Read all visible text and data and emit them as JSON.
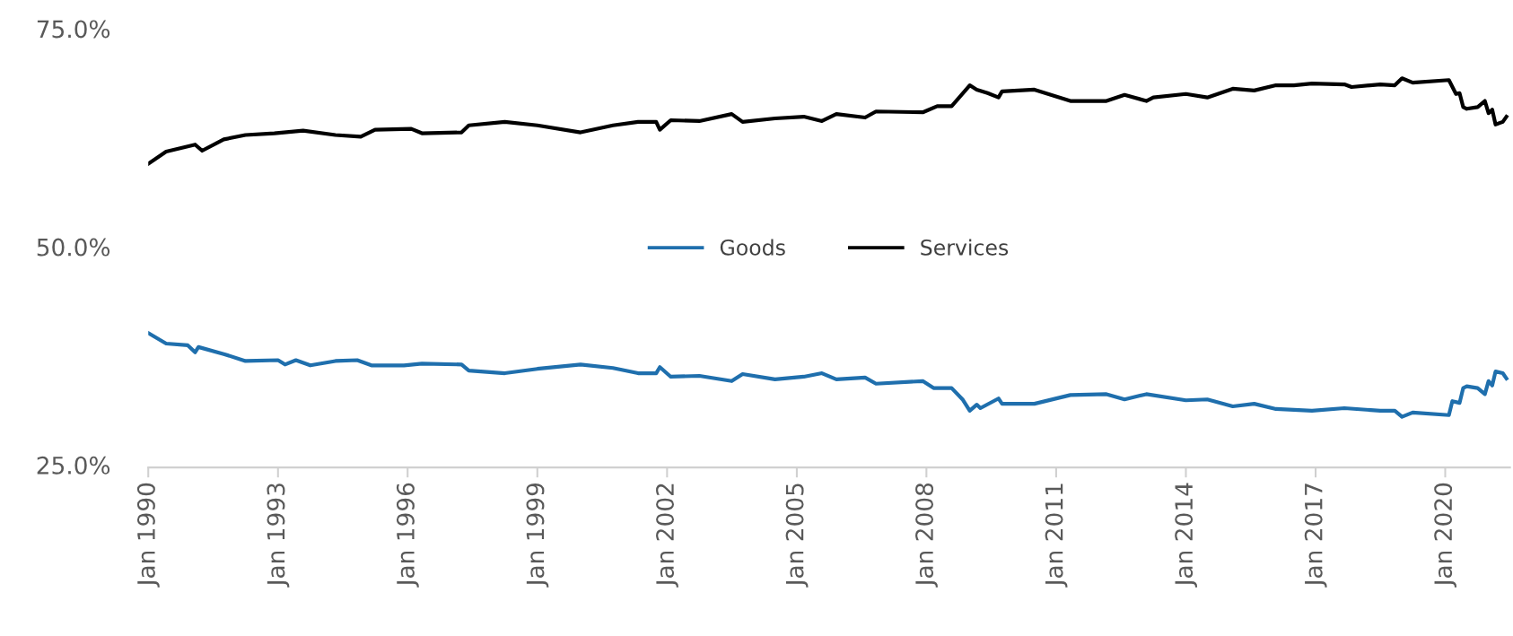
{
  "chart_data": {
    "type": "line",
    "x": [
      "1990-01",
      "1990-06",
      "1990-12",
      "1991-02",
      "1991-03",
      "1991-10",
      "1992-04",
      "1993-01",
      "1993-03",
      "1993-06",
      "1993-10",
      "1994-05",
      "1994-11",
      "1995-03",
      "1995-12",
      "1996-05",
      "1997-04",
      "1997-06",
      "1998-04",
      "1999-01",
      "2000-01",
      "2000-10",
      "2001-05",
      "2001-10",
      "2001-11",
      "2002-02",
      "2002-10",
      "2003-07",
      "2003-10",
      "2004-07",
      "2005-03",
      "2005-08",
      "2005-12",
      "2006-08",
      "2006-11",
      "2007-12",
      "2008-03",
      "2008-08",
      "2008-11",
      "2009-01",
      "2009-03",
      "2009-04",
      "2009-09",
      "2009-10",
      "2010-07",
      "2011-05",
      "2012-03",
      "2012-08",
      "2013-02",
      "2014-01",
      "2014-07",
      "2015-02",
      "2015-08",
      "2016-02",
      "2016-12",
      "2017-09",
      "2018-07",
      "2018-11",
      "2019-01",
      "2019-04",
      "2020-02",
      "2020-03",
      "2020-05",
      "2020-06",
      "2020-07",
      "2020-10",
      "2020-12",
      "2021-01",
      "2021-02",
      "2021-03",
      "2021-05",
      "2021-06"
    ],
    "series": [
      {
        "name": "Goods",
        "color": "#1f6fad",
        "values": [
          40.4,
          39.2,
          39.0,
          38.2,
          38.8,
          38.0,
          37.2,
          37.3,
          36.8,
          37.3,
          36.7,
          37.2,
          37.3,
          36.7,
          36.7,
          36.9,
          36.8,
          36.1,
          35.8,
          36.3,
          36.8,
          36.4,
          35.8,
          35.8,
          36.5,
          35.4,
          35.5,
          34.9,
          35.7,
          35.1,
          35.4,
          35.8,
          35.1,
          35.3,
          34.6,
          34.9,
          34.1,
          34.1,
          32.8,
          31.5,
          32.2,
          31.8,
          32.9,
          32.3,
          32.3,
          33.3,
          33.4,
          32.8,
          33.4,
          32.7,
          32.8,
          32.0,
          32.3,
          31.7,
          31.5,
          31.8,
          31.5,
          31.5,
          30.8,
          31.3,
          31.0,
          32.6,
          32.4,
          34.1,
          34.3,
          34.1,
          33.4,
          34.9,
          34.4,
          36.0,
          35.8,
          35.2
        ]
      },
      {
        "name": "Services",
        "color": "#000000",
        "x": [
          "1990-01",
          "1990-06",
          "1991-02",
          "1991-04",
          "1991-10",
          "1992-04",
          "1992-12",
          "1993-08",
          "1994-05",
          "1994-12",
          "1995-04",
          "1996-02",
          "1996-05",
          "1997-04",
          "1997-06",
          "1998-04",
          "1999-01",
          "2000-01",
          "2000-10",
          "2001-05",
          "2001-10",
          "2001-11",
          "2002-02",
          "2002-10",
          "2003-07",
          "2003-10",
          "2004-07",
          "2005-03",
          "2005-08",
          "2005-12",
          "2006-08",
          "2006-11",
          "2007-12",
          "2008-04",
          "2008-08",
          "2008-12",
          "2009-01",
          "2009-03",
          "2009-06",
          "2009-09",
          "2009-10",
          "2010-07",
          "2011-05",
          "2012-03",
          "2012-08",
          "2013-02",
          "2013-04",
          "2014-01",
          "2014-07",
          "2015-02",
          "2015-08",
          "2016-02",
          "2016-07",
          "2016-12",
          "2017-09",
          "2017-11",
          "2018-07",
          "2018-11",
          "2019-01",
          "2019-04",
          "2020-02",
          "2020-04",
          "2020-05",
          "2020-06",
          "2020-07",
          "2020-10",
          "2020-12",
          "2021-01",
          "2021-02",
          "2021-03",
          "2021-05",
          "2021-06"
        ],
        "values": [
          59.8,
          61.2,
          62.0,
          61.3,
          62.6,
          63.1,
          63.3,
          63.6,
          63.1,
          62.9,
          63.7,
          63.8,
          63.3,
          63.4,
          64.2,
          64.6,
          64.2,
          63.4,
          64.2,
          64.6,
          64.6,
          63.7,
          64.8,
          64.7,
          65.5,
          64.6,
          65.0,
          65.2,
          64.7,
          65.5,
          65.1,
          65.8,
          65.7,
          66.4,
          66.4,
          68.3,
          68.8,
          68.3,
          67.9,
          67.4,
          68.1,
          68.3,
          67.0,
          67.0,
          67.7,
          67.0,
          67.4,
          67.8,
          67.4,
          68.4,
          68.2,
          68.8,
          68.8,
          69.0,
          68.9,
          68.6,
          68.9,
          68.8,
          69.6,
          69.1,
          69.4,
          67.8,
          67.9,
          66.3,
          66.1,
          66.3,
          67.0,
          65.6,
          66.0,
          64.3,
          64.6,
          65.2
        ]
      }
    ],
    "xlim": [
      "1990-01",
      "2021-07"
    ],
    "xticks": [
      {
        "value": "1990-01",
        "label": "Jan 1990"
      },
      {
        "value": "1993-01",
        "label": "Jan 1993"
      },
      {
        "value": "1996-01",
        "label": "Jan 1996"
      },
      {
        "value": "1999-01",
        "label": "Jan 1999"
      },
      {
        "value": "2002-01",
        "label": "Jan 2002"
      },
      {
        "value": "2005-01",
        "label": "Jan 2005"
      },
      {
        "value": "2008-01",
        "label": "Jan 2008"
      },
      {
        "value": "2011-01",
        "label": "Jan 2011"
      },
      {
        "value": "2014-01",
        "label": "Jan 2014"
      },
      {
        "value": "2017-01",
        "label": "Jan 2017"
      },
      {
        "value": "2020-01",
        "label": "Jan 2020"
      }
    ],
    "ylim": [
      25,
      75
    ],
    "yticks": [
      {
        "value": 25,
        "label": "25.0%"
      },
      {
        "value": 50,
        "label": "50.0%"
      },
      {
        "value": 75,
        "label": "75.0%"
      }
    ],
    "grid": false,
    "legend": "center",
    "line_style": "solid",
    "marker": "none"
  }
}
